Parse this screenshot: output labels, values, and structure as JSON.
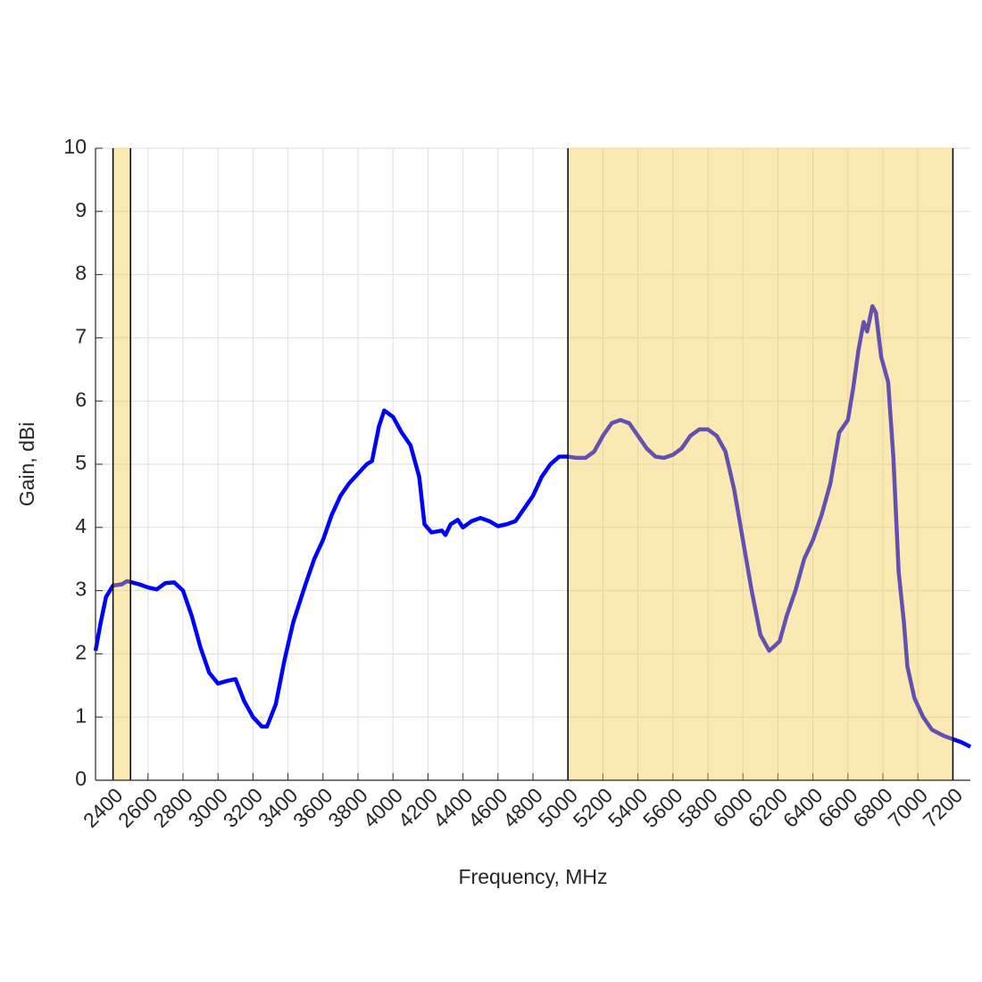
{
  "chart_data": {
    "type": "line",
    "xlabel": "Frequency, MHz",
    "ylabel": "Gain, dBi",
    "xlim": [
      2300,
      7300
    ],
    "ylim": [
      0,
      10
    ],
    "xticks": [
      2400,
      2600,
      2800,
      3000,
      3200,
      3400,
      3600,
      3800,
      4000,
      4200,
      4400,
      4600,
      4800,
      5000,
      5200,
      5400,
      5600,
      5800,
      6000,
      6200,
      6400,
      6600,
      6800,
      7000,
      7200
    ],
    "yticks": [
      0,
      1,
      2,
      3,
      4,
      5,
      6,
      7,
      8,
      9,
      10
    ],
    "grid": true,
    "shaded_ranges": [
      [
        2400,
        2500
      ],
      [
        5000,
        7200
      ]
    ],
    "shade_color": "#f5c842",
    "series": [
      {
        "color": "#0000ff",
        "x": [
          2300,
          2330,
          2360,
          2400,
          2450,
          2480,
          2550,
          2600,
          2650,
          2700,
          2750,
          2800,
          2850,
          2900,
          2950,
          3000,
          3050,
          3100,
          3150,
          3200,
          3250,
          3280,
          3330,
          3380,
          3430,
          3500,
          3550,
          3600,
          3650,
          3700,
          3750,
          3800,
          3850,
          3880,
          3920,
          3950,
          4000,
          4050,
          4100,
          4150,
          4180,
          4220,
          4280,
          4300,
          4330,
          4370,
          4400,
          4450,
          4500,
          4550,
          4600,
          4650,
          4700,
          4750,
          4800,
          4850,
          4900,
          4950,
          5000,
          5050,
          5100,
          5150,
          5200,
          5250,
          5300,
          5350,
          5400,
          5450,
          5500,
          5550,
          5600,
          5650,
          5700,
          5750,
          5800,
          5850,
          5900,
          5950,
          6000,
          6050,
          6100,
          6150,
          6180,
          6210,
          6250,
          6300,
          6350,
          6400,
          6450,
          6500,
          6550,
          6600,
          6630,
          6660,
          6690,
          6710,
          6740,
          6760,
          6790,
          6830,
          6860,
          6890,
          6920,
          6940,
          6980,
          7030,
          7080,
          7150,
          7200,
          7250,
          7300
        ],
        "values": [
          2.05,
          2.5,
          2.9,
          3.08,
          3.1,
          3.15,
          3.1,
          3.05,
          3.02,
          3.12,
          3.13,
          3.0,
          2.6,
          2.1,
          1.7,
          1.53,
          1.57,
          1.6,
          1.25,
          1.0,
          0.85,
          0.85,
          1.2,
          1.9,
          2.5,
          3.1,
          3.5,
          3.8,
          4.2,
          4.5,
          4.7,
          4.85,
          5.0,
          5.05,
          5.6,
          5.85,
          5.75,
          5.5,
          5.3,
          4.8,
          4.05,
          3.92,
          3.95,
          3.88,
          4.05,
          4.12,
          4.0,
          4.1,
          4.15,
          4.1,
          4.02,
          4.05,
          4.1,
          4.3,
          4.5,
          4.8,
          5.0,
          5.12,
          5.12,
          5.1,
          5.1,
          5.2,
          5.45,
          5.65,
          5.7,
          5.65,
          5.45,
          5.25,
          5.12,
          5.1,
          5.15,
          5.25,
          5.45,
          5.55,
          5.55,
          5.45,
          5.2,
          4.6,
          3.8,
          3.0,
          2.3,
          2.05,
          2.12,
          2.2,
          2.6,
          3.0,
          3.5,
          3.8,
          4.2,
          4.7,
          5.5,
          5.7,
          6.2,
          6.8,
          7.25,
          7.1,
          7.5,
          7.4,
          6.7,
          6.3,
          5.1,
          3.3,
          2.5,
          1.8,
          1.3,
          1.0,
          0.8,
          0.7,
          0.65,
          0.6,
          0.53
        ]
      }
    ]
  }
}
